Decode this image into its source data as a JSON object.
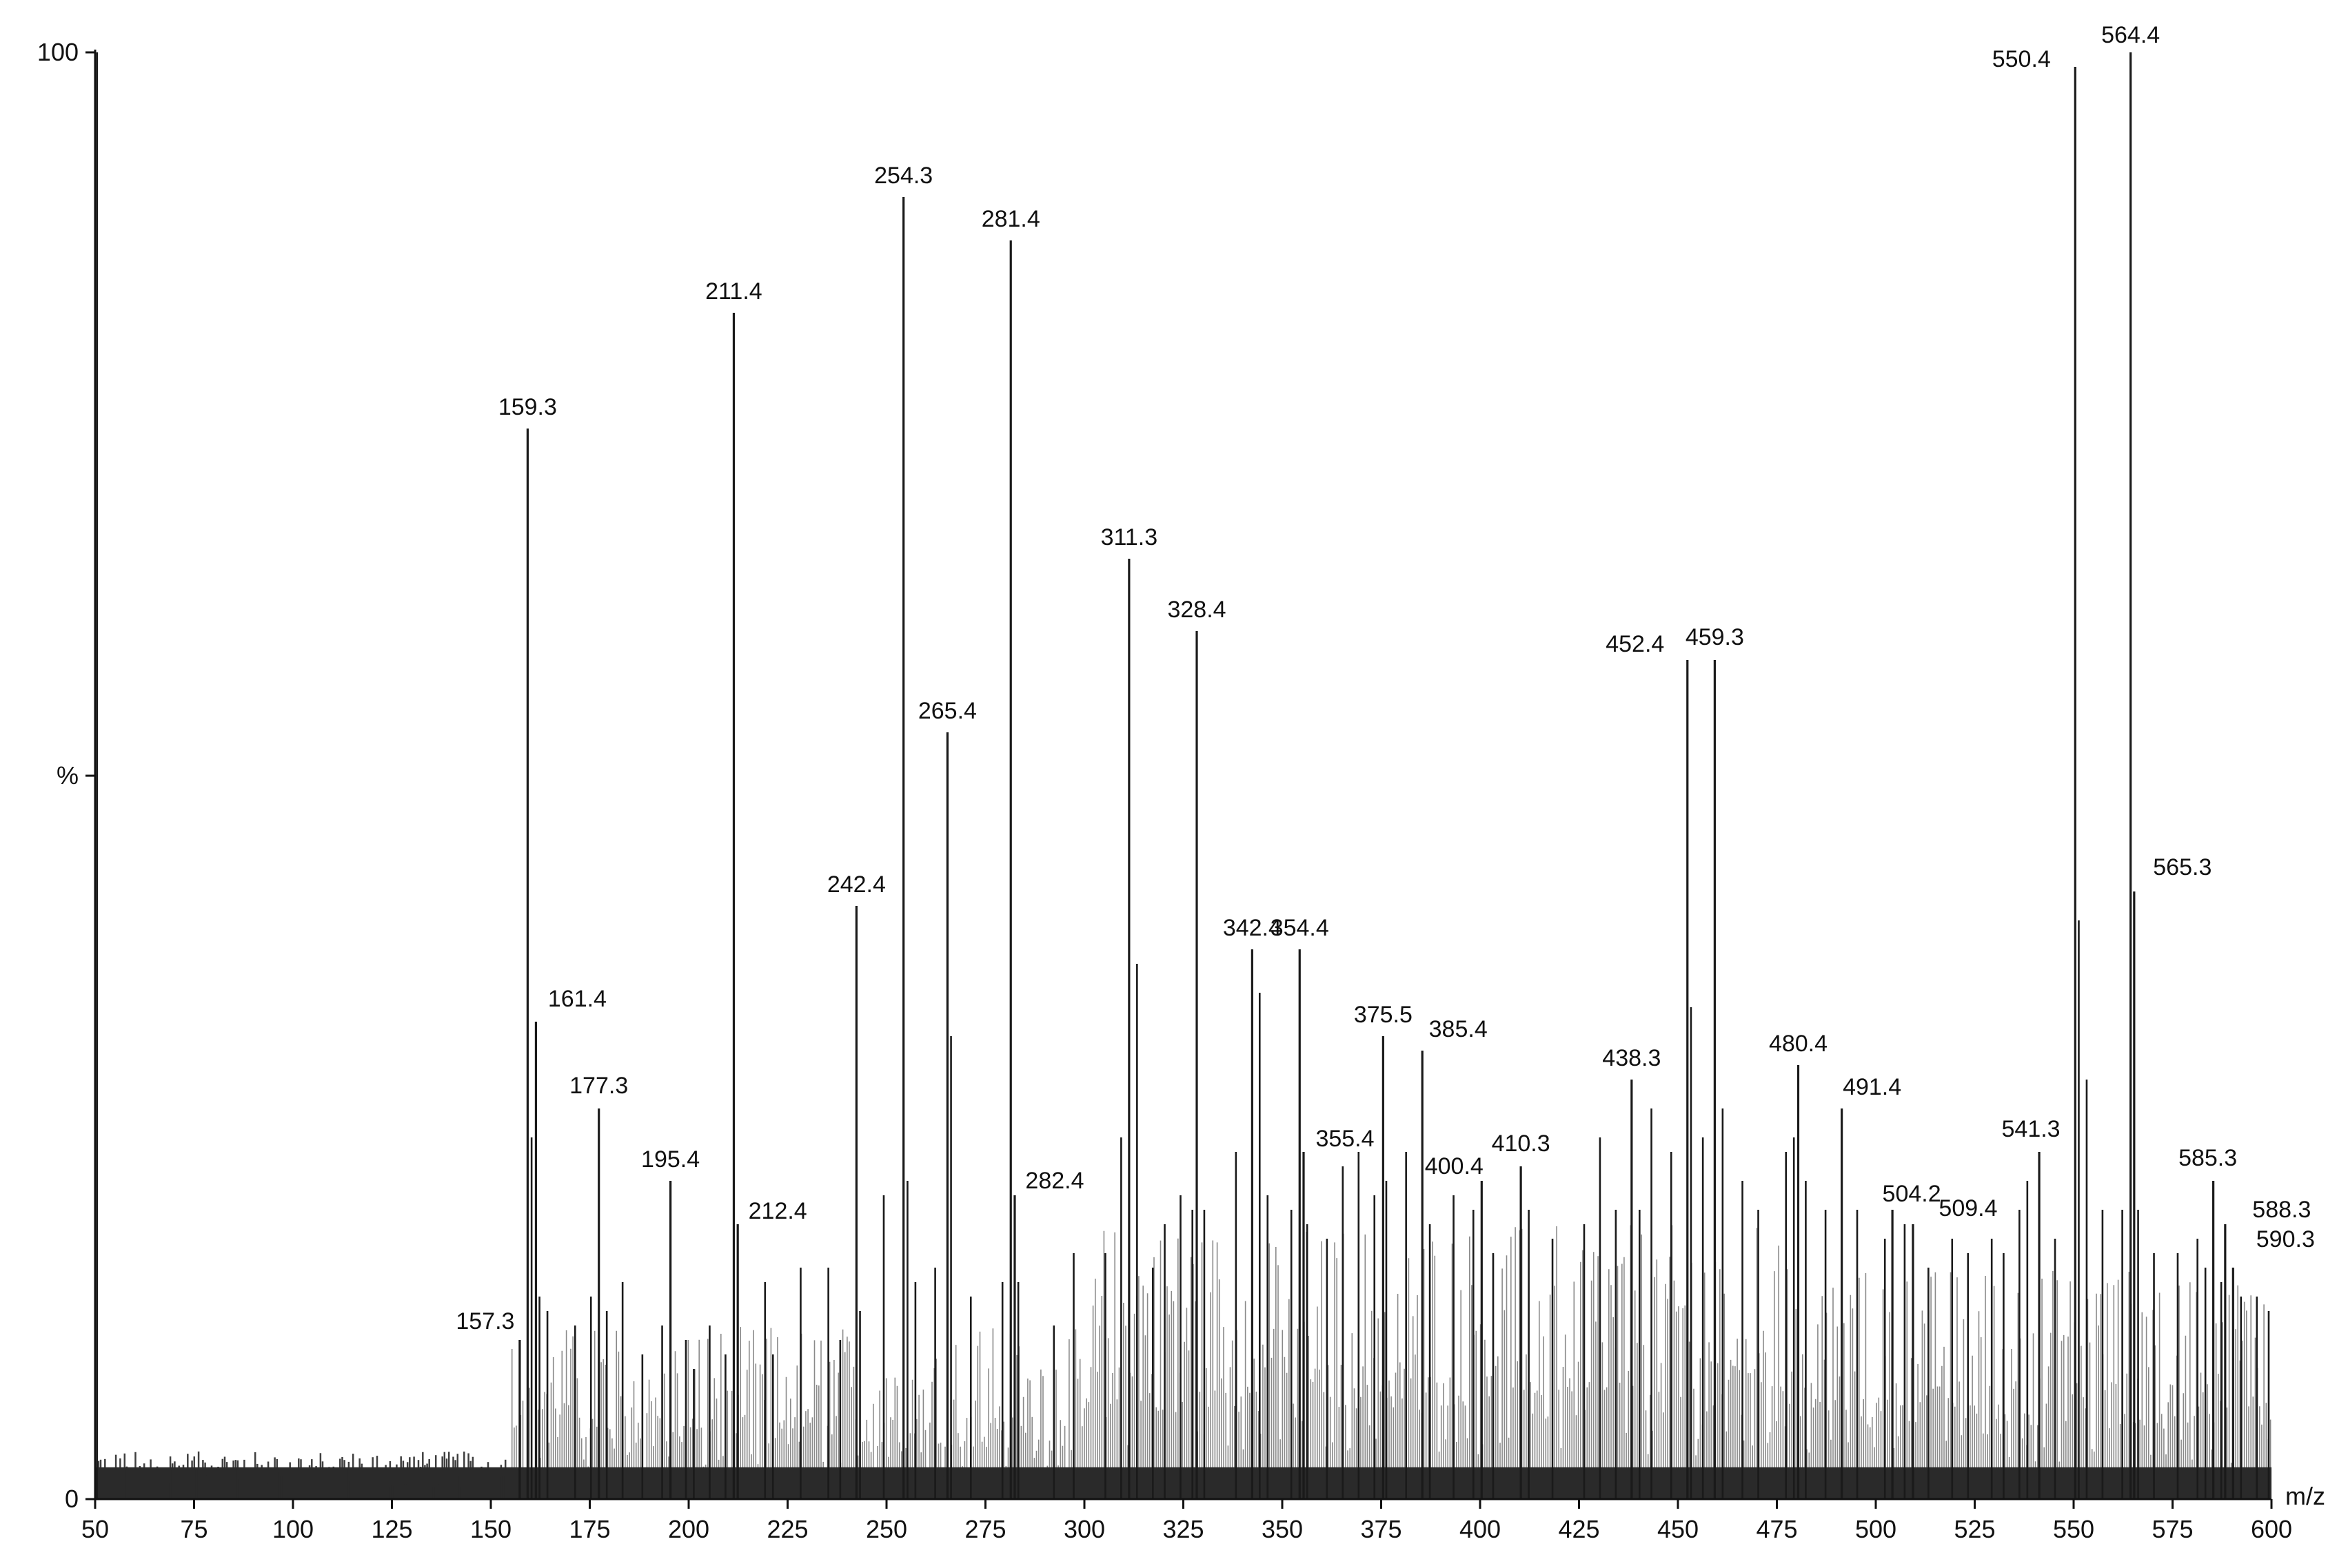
{
  "chart_data": {
    "type": "bar",
    "title": "",
    "xlabel": "m/z",
    "ylabel": "%",
    "xlim": [
      50,
      600
    ],
    "ylim": [
      0,
      100
    ],
    "x_ticks": [
      "50",
      "75",
      "100",
      "125",
      "150",
      "175",
      "200",
      "225",
      "250",
      "275",
      "300",
      "325",
      "350",
      "375",
      "400",
      "425",
      "450",
      "475",
      "500",
      "525",
      "550",
      "575",
      "600"
    ],
    "y_ticks": [
      {
        "value": 0,
        "label": "0"
      },
      {
        "value": 50,
        "label": "%"
      },
      {
        "value": 100,
        "label": "100"
      }
    ],
    "grid": false,
    "legend": "none",
    "colors": {
      "stick": "#1a1a1a",
      "axis": "#111111",
      "noise": "#2a2a2a"
    },
    "labeled_peaks": [
      {
        "label": "157.3",
        "x": 157.3,
        "y": 11
      },
      {
        "label": "159.3",
        "x": 159.3,
        "y": 74
      },
      {
        "label": "161.4",
        "x": 161.4,
        "y": 33
      },
      {
        "label": "177.3",
        "x": 177.3,
        "y": 27
      },
      {
        "label": "195.4",
        "x": 195.4,
        "y": 22
      },
      {
        "label": "211.4",
        "x": 211.4,
        "y": 82
      },
      {
        "label": "212.4",
        "x": 212.4,
        "y": 19
      },
      {
        "label": "242.4",
        "x": 242.4,
        "y": 41
      },
      {
        "label": "254.3",
        "x": 254.3,
        "y": 90
      },
      {
        "label": "265.4",
        "x": 265.4,
        "y": 53
      },
      {
        "label": "281.4",
        "x": 281.4,
        "y": 87
      },
      {
        "label": "282.4",
        "x": 282.4,
        "y": 21
      },
      {
        "label": "311.3",
        "x": 311.3,
        "y": 65
      },
      {
        "label": "328.4",
        "x": 328.4,
        "y": 60
      },
      {
        "label": "342.4",
        "x": 342.4,
        "y": 38
      },
      {
        "label": "354.4",
        "x": 354.4,
        "y": 38
      },
      {
        "label": "355.4",
        "x": 355.4,
        "y": 24
      },
      {
        "label": "375.5",
        "x": 375.5,
        "y": 32
      },
      {
        "label": "385.4",
        "x": 385.4,
        "y": 31
      },
      {
        "label": "400.4",
        "x": 400.4,
        "y": 22
      },
      {
        "label": "410.3",
        "x": 410.3,
        "y": 23
      },
      {
        "label": "438.3",
        "x": 438.3,
        "y": 29
      },
      {
        "label": "452.4",
        "x": 452.4,
        "y": 58
      },
      {
        "label": "459.3",
        "x": 459.3,
        "y": 58
      },
      {
        "label": "480.4",
        "x": 480.4,
        "y": 30
      },
      {
        "label": "491.4",
        "x": 491.4,
        "y": 27
      },
      {
        "label": "504.2",
        "x": 504.2,
        "y": 20
      },
      {
        "label": "509.4",
        "x": 509.4,
        "y": 19
      },
      {
        "label": "541.3",
        "x": 541.3,
        "y": 24
      },
      {
        "label": "550.4",
        "x": 550.4,
        "y": 99
      },
      {
        "label": "564.4",
        "x": 564.4,
        "y": 100
      },
      {
        "label": "565.3",
        "x": 565.3,
        "y": 42
      },
      {
        "label": "585.3",
        "x": 585.3,
        "y": 22
      },
      {
        "label": "588.3",
        "x": 588.3,
        "y": 19
      },
      {
        "label": "590.3",
        "x": 590.3,
        "y": 16
      }
    ],
    "unlabeled_peaks": [
      {
        "x": 160.3,
        "y": 25
      },
      {
        "x": 162.3,
        "y": 14
      },
      {
        "x": 164.3,
        "y": 13
      },
      {
        "x": 171.3,
        "y": 12
      },
      {
        "x": 175.3,
        "y": 14
      },
      {
        "x": 179.3,
        "y": 13
      },
      {
        "x": 183.3,
        "y": 15
      },
      {
        "x": 188.3,
        "y": 10
      },
      {
        "x": 193.3,
        "y": 12
      },
      {
        "x": 199.3,
        "y": 11
      },
      {
        "x": 201.3,
        "y": 9
      },
      {
        "x": 205.3,
        "y": 12
      },
      {
        "x": 209.3,
        "y": 10
      },
      {
        "x": 219.3,
        "y": 15
      },
      {
        "x": 221.3,
        "y": 10
      },
      {
        "x": 228.3,
        "y": 16
      },
      {
        "x": 235.3,
        "y": 16
      },
      {
        "x": 238.3,
        "y": 11
      },
      {
        "x": 243.3,
        "y": 13
      },
      {
        "x": 249.3,
        "y": 21
      },
      {
        "x": 255.3,
        "y": 22
      },
      {
        "x": 257.3,
        "y": 15
      },
      {
        "x": 262.3,
        "y": 16
      },
      {
        "x": 266.3,
        "y": 32
      },
      {
        "x": 271.3,
        "y": 14
      },
      {
        "x": 279.3,
        "y": 15
      },
      {
        "x": 283.3,
        "y": 15
      },
      {
        "x": 292.3,
        "y": 12
      },
      {
        "x": 297.3,
        "y": 17
      },
      {
        "x": 305.3,
        "y": 17
      },
      {
        "x": 309.3,
        "y": 25
      },
      {
        "x": 313.3,
        "y": 37
      },
      {
        "x": 317.3,
        "y": 16
      },
      {
        "x": 320.3,
        "y": 19
      },
      {
        "x": 324.3,
        "y": 21
      },
      {
        "x": 327.3,
        "y": 20
      },
      {
        "x": 330.3,
        "y": 20
      },
      {
        "x": 338.3,
        "y": 24
      },
      {
        "x": 344.3,
        "y": 35
      },
      {
        "x": 346.3,
        "y": 21
      },
      {
        "x": 352.3,
        "y": 20
      },
      {
        "x": 356.3,
        "y": 19
      },
      {
        "x": 361.3,
        "y": 18
      },
      {
        "x": 365.3,
        "y": 23
      },
      {
        "x": 369.3,
        "y": 24
      },
      {
        "x": 373.3,
        "y": 21
      },
      {
        "x": 376.3,
        "y": 22
      },
      {
        "x": 381.3,
        "y": 24
      },
      {
        "x": 387.3,
        "y": 19
      },
      {
        "x": 393.3,
        "y": 21
      },
      {
        "x": 398.3,
        "y": 20
      },
      {
        "x": 403.3,
        "y": 17
      },
      {
        "x": 412.3,
        "y": 20
      },
      {
        "x": 418.3,
        "y": 18
      },
      {
        "x": 426.3,
        "y": 19
      },
      {
        "x": 430.3,
        "y": 25
      },
      {
        "x": 434.3,
        "y": 20
      },
      {
        "x": 440.3,
        "y": 20
      },
      {
        "x": 443.3,
        "y": 27
      },
      {
        "x": 448.3,
        "y": 24
      },
      {
        "x": 453.3,
        "y": 34
      },
      {
        "x": 456.3,
        "y": 25
      },
      {
        "x": 461.3,
        "y": 27
      },
      {
        "x": 466.3,
        "y": 22
      },
      {
        "x": 470.3,
        "y": 20
      },
      {
        "x": 477.3,
        "y": 24
      },
      {
        "x": 479.3,
        "y": 25
      },
      {
        "x": 482.3,
        "y": 22
      },
      {
        "x": 487.3,
        "y": 20
      },
      {
        "x": 495.3,
        "y": 20
      },
      {
        "x": 502.3,
        "y": 18
      },
      {
        "x": 507.3,
        "y": 19
      },
      {
        "x": 513.3,
        "y": 16
      },
      {
        "x": 519.3,
        "y": 18
      },
      {
        "x": 523.3,
        "y": 17
      },
      {
        "x": 529.3,
        "y": 18
      },
      {
        "x": 532.3,
        "y": 17
      },
      {
        "x": 536.3,
        "y": 20
      },
      {
        "x": 538.3,
        "y": 22
      },
      {
        "x": 545.3,
        "y": 18
      },
      {
        "x": 551.3,
        "y": 40
      },
      {
        "x": 553.3,
        "y": 29
      },
      {
        "x": 557.3,
        "y": 20
      },
      {
        "x": 562.3,
        "y": 20
      },
      {
        "x": 566.3,
        "y": 20
      },
      {
        "x": 570.3,
        "y": 17
      },
      {
        "x": 576.3,
        "y": 17
      },
      {
        "x": 581.3,
        "y": 18
      },
      {
        "x": 583.3,
        "y": 16
      },
      {
        "x": 587.3,
        "y": 15
      },
      {
        "x": 592.3,
        "y": 14
      },
      {
        "x": 596.3,
        "y": 14
      },
      {
        "x": 599.3,
        "y": 13
      }
    ],
    "peak_data_shown_as_marks": true
  }
}
